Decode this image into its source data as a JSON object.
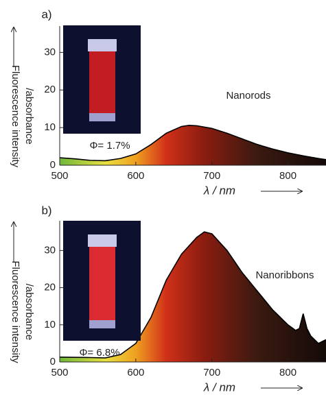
{
  "chart_data": [
    {
      "type": "area",
      "panel_label": "a)",
      "ylabel": [
        "Fluorescence intensity",
        "/absorbance"
      ],
      "xlabel": "λ / nm",
      "annotation": "Nanorods",
      "inset_label": "Φ= 1.7%",
      "line_color": "#000000",
      "x": [
        500,
        520,
        540,
        560,
        580,
        600,
        620,
        640,
        660,
        670,
        680,
        700,
        720,
        740,
        760,
        780,
        800,
        820,
        840,
        850
      ],
      "values": [
        2,
        1.7,
        1.3,
        1.2,
        1.8,
        3,
        5.5,
        8.5,
        10.3,
        10.6,
        10.5,
        9.8,
        8.5,
        7,
        5.5,
        4.3,
        3.3,
        2.5,
        1.8,
        1.5
      ],
      "xlim": [
        500,
        850
      ],
      "ylim": [
        0,
        37
      ],
      "xticks": [
        500,
        600,
        700,
        800
      ],
      "yticks": [
        0,
        10,
        20,
        30
      ],
      "fill_gradient": [
        {
          "x": 500,
          "color": "#6fb83a"
        },
        {
          "x": 560,
          "color": "#e8e040"
        },
        {
          "x": 600,
          "color": "#f0a020"
        },
        {
          "x": 640,
          "color": "#d03018"
        },
        {
          "x": 690,
          "color": "#8a1c10"
        },
        {
          "x": 760,
          "color": "#3a1a10"
        },
        {
          "x": 850,
          "color": "#140a08"
        }
      ]
    },
    {
      "type": "area",
      "panel_label": "b)",
      "ylabel": [
        "Fluorescence intensity",
        "/absorbance"
      ],
      "xlabel": "λ / nm",
      "annotation": "Nanoribbons",
      "inset_label": "Φ= 6.8%",
      "line_color": "#000000",
      "x": [
        500,
        540,
        560,
        580,
        600,
        620,
        640,
        660,
        680,
        690,
        700,
        720,
        740,
        760,
        780,
        800,
        810,
        815,
        820,
        825,
        830,
        840,
        850
      ],
      "values": [
        1.3,
        1.2,
        1.1,
        2,
        5,
        12,
        22,
        29,
        33.5,
        35,
        34.5,
        30,
        24,
        19,
        14,
        10,
        8.5,
        9,
        13,
        9,
        7,
        5,
        6
      ],
      "xlim": [
        500,
        850
      ],
      "ylim": [
        0,
        38
      ],
      "xticks": [
        500,
        600,
        700,
        800
      ],
      "yticks": [
        0,
        10,
        20,
        30
      ],
      "fill_gradient": [
        {
          "x": 500,
          "color": "#6fb83a"
        },
        {
          "x": 560,
          "color": "#e8e040"
        },
        {
          "x": 600,
          "color": "#f0a020"
        },
        {
          "x": 640,
          "color": "#d03018"
        },
        {
          "x": 690,
          "color": "#8a1c10"
        },
        {
          "x": 760,
          "color": "#3a1a10"
        },
        {
          "x": 850,
          "color": "#140a08"
        }
      ]
    }
  ]
}
